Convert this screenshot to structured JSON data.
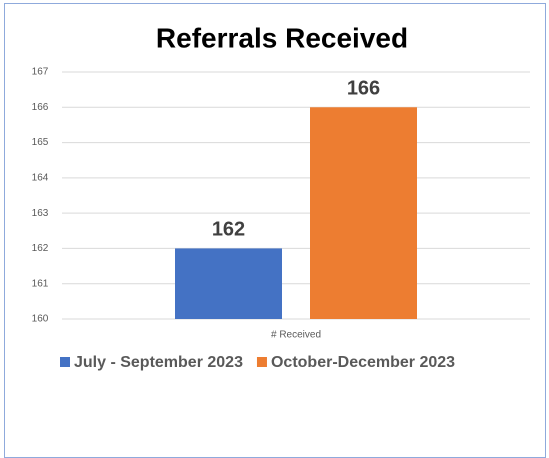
{
  "chart_data": {
    "type": "bar",
    "title": "Referrals Received",
    "categories": [
      "# Received"
    ],
    "series": [
      {
        "name": "July - September 2023",
        "color": "#4472c4",
        "values": [
          162
        ]
      },
      {
        "name": "October-December 2023",
        "color": "#ed7d31",
        "values": [
          166
        ]
      }
    ],
    "ylim": [
      160,
      167
    ],
    "yticks": [
      160,
      161,
      162,
      163,
      164,
      165,
      166,
      167
    ],
    "grid": true,
    "legend": "bottom"
  }
}
